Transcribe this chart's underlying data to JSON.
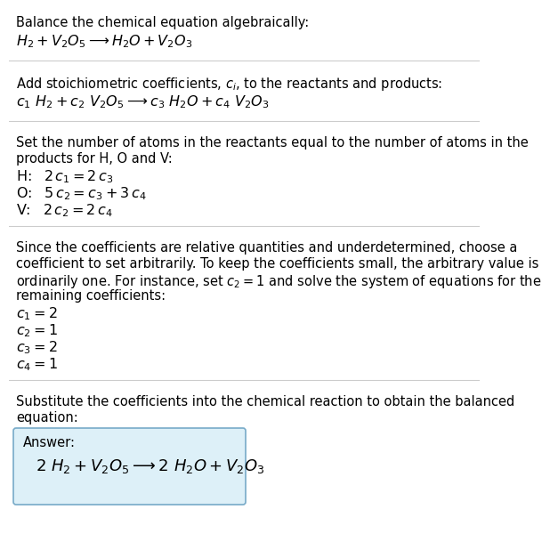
{
  "title": "Balance the chemical equation algebraically:",
  "equation1": "$H_2 + V_2O_5 \\longrightarrow H_2O + V_2O_3$",
  "section2_header": "Add stoichiometric coefficients, $c_i$, to the reactants and products:",
  "equation2": "$c_1\\ H_2 + c_2\\ V_2O_5 \\longrightarrow c_3\\ H_2O + c_4\\ V_2O_3$",
  "section3_header_lines": [
    "Set the number of atoms in the reactants equal to the number of atoms in the",
    "products for H, O and V:"
  ],
  "equations3": [
    "H: $\\;\\;2\\,c_1 = 2\\,c_3$",
    "O: $\\;\\;5\\,c_2 = c_3 + 3\\,c_4$",
    "V: $\\;\\;2\\,c_2 = 2\\,c_4$"
  ],
  "section4_header_lines": [
    "Since the coefficients are relative quantities and underdetermined, choose a",
    "coefficient to set arbitrarily. To keep the coefficients small, the arbitrary value is",
    "ordinarily one. For instance, set $c_2 = 1$ and solve the system of equations for the",
    "remaining coefficients:"
  ],
  "coefficients": [
    "$c_1 = 2$",
    "$c_2 = 1$",
    "$c_3 = 2$",
    "$c_4 = 1$"
  ],
  "section5_header_lines": [
    "Substitute the coefficients into the chemical reaction to obtain the balanced",
    "equation:"
  ],
  "answer_label": "Answer:",
  "answer_equation": "$2\\ H_2 + V_2O_5 \\longrightarrow 2\\ H_2O + V_2O_3$",
  "bg_color": "#ffffff",
  "text_color": "#000000",
  "line_color": "#cccccc",
  "box_bg_color": "#ddf0f8",
  "box_border_color": "#77aac8",
  "body_fontsize": 10.5,
  "eq_fontsize": 11.5,
  "answer_eq_fontsize": 13
}
